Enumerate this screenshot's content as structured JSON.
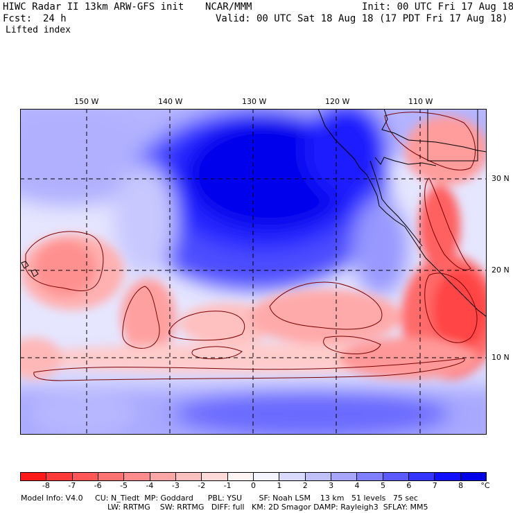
{
  "header": {
    "title": "HIWC Radar II 13km ARW-GFS init",
    "org": "NCAR/MMM",
    "init": "Init: 00 UTC Fri 17 Aug 18",
    "fcst_label": "Fcst:",
    "fcst_value": "24 h",
    "valid": "Valid: 00 UTC Sat 18 Aug 18 (17 PDT Fri 17 Aug 18)",
    "field": "Lifted index"
  },
  "map": {
    "lon_ticks": [
      "150 W",
      "140 W",
      "130 W",
      "120 W",
      "110 W"
    ],
    "lat_ticks": [
      "30 N",
      "20 N",
      "10 N"
    ],
    "region": "Eastern North Pacific"
  },
  "colorbar": {
    "labels": [
      "-8",
      "-7",
      "-6",
      "-5",
      "-4",
      "-3",
      "-2",
      "-1",
      "0",
      "1",
      "2",
      "3",
      "4",
      "5",
      "6",
      "7",
      "8"
    ],
    "unit": "°C",
    "colors": [
      "#ff1a1a",
      "#ff3a3a",
      "#ff5757",
      "#ff7272",
      "#ff8c8c",
      "#ffa6a6",
      "#ffc0c0",
      "#ffdada",
      "#fff4f4",
      "#f4f4ff",
      "#dadaff",
      "#c0c0ff",
      "#a6a6ff",
      "#8080ff",
      "#5a5aff",
      "#3434ff",
      "#1010ff",
      "#0000e8"
    ]
  },
  "footer": {
    "line1": "Model Info: V4.0     CU: N_Tiedt  MP: Goddard      PBL: YSU       SF: Noah LSM    13 km   51 levels   75 sec",
    "line2": "LW: RRTMG    SW: RRTMG   DIFF: full   KM: 2D Smagor DAMP: Rayleigh3  SFLAY: MM5"
  }
}
